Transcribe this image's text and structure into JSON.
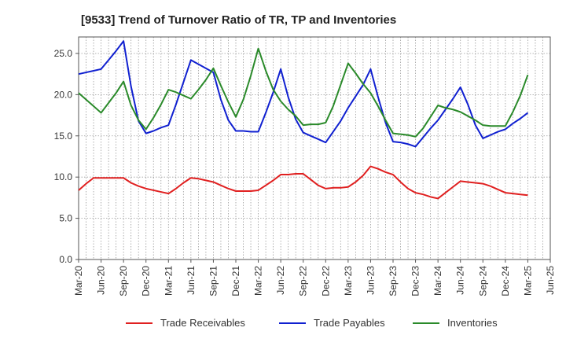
{
  "chart_data": {
    "type": "line",
    "title": "[9533]  Trend of Turnover Ratio of TR, TP and Inventories",
    "xlabel": "",
    "ylabel": "",
    "ylim": [
      0,
      27
    ],
    "yticks": [
      "0.0",
      "5.0",
      "10.0",
      "15.0",
      "20.0",
      "25.0"
    ],
    "ytick_values": [
      0,
      5,
      10,
      15,
      20,
      25
    ],
    "grid": true,
    "legend_position": "bottom",
    "x_tick_labels": [
      "Mar-20",
      "Jun-20",
      "Sep-20",
      "Dec-20",
      "Mar-21",
      "Jun-21",
      "Sep-21",
      "Dec-21",
      "Mar-22",
      "Jun-22",
      "Sep-22",
      "Dec-22",
      "Mar-23",
      "Jun-23",
      "Sep-23",
      "Dec-23",
      "Mar-24",
      "Jun-24",
      "Sep-24",
      "Dec-24",
      "Mar-25",
      "Jun-25"
    ],
    "x": [
      "Mar-20",
      "Apr-20",
      "May-20",
      "Jun-20",
      "Jul-20",
      "Aug-20",
      "Sep-20",
      "Oct-20",
      "Nov-20",
      "Dec-20",
      "Jan-21",
      "Feb-21",
      "Mar-21",
      "Apr-21",
      "May-21",
      "Jun-21",
      "Jul-21",
      "Aug-21",
      "Sep-21",
      "Oct-21",
      "Nov-21",
      "Dec-21",
      "Jan-22",
      "Feb-22",
      "Mar-22",
      "Apr-22",
      "May-22",
      "Jun-22",
      "Jul-22",
      "Aug-22",
      "Sep-22",
      "Oct-22",
      "Nov-22",
      "Dec-22",
      "Jan-23",
      "Feb-23",
      "Mar-23",
      "Apr-23",
      "May-23",
      "Jun-23",
      "Jul-23",
      "Aug-23",
      "Sep-23",
      "Oct-23",
      "Nov-23",
      "Dec-23",
      "Jan-24",
      "Feb-24",
      "Mar-24",
      "Apr-24",
      "May-24",
      "Jun-24",
      "Jul-24",
      "Aug-24",
      "Sep-24",
      "Oct-24",
      "Nov-24",
      "Dec-24",
      "Jan-25",
      "Feb-25",
      "Mar-25",
      "Apr-25",
      "May-25",
      "Jun-25"
    ],
    "series": [
      {
        "name": "Trade Receivables",
        "color": "#e02020",
        "values": [
          8.4,
          9.2,
          9.9,
          9.9,
          9.9,
          9.9,
          9.9,
          9.3,
          8.9,
          8.6,
          8.4,
          8.2,
          8.0,
          8.6,
          9.3,
          9.9,
          9.8,
          9.6,
          9.4,
          9.0,
          8.6,
          8.3,
          8.3,
          8.3,
          8.4,
          9.0,
          9.6,
          10.3,
          10.3,
          10.4,
          10.4,
          9.7,
          9.0,
          8.6,
          8.7,
          8.7,
          8.8,
          9.4,
          10.2,
          11.3,
          11.0,
          10.6,
          10.3,
          9.4,
          8.6,
          8.1,
          7.9,
          7.6,
          7.4,
          8.1,
          8.8,
          9.5,
          9.4,
          9.3,
          9.2,
          8.9,
          8.5,
          8.1,
          8.0,
          7.9,
          7.8,
          null,
          null,
          null
        ]
      },
      {
        "name": "Trade Payables",
        "color": "#1020d0",
        "values": [
          22.5,
          22.7,
          22.9,
          23.1,
          24.2,
          25.3,
          26.5,
          21.0,
          16.8,
          15.3,
          15.6,
          16.0,
          16.3,
          18.8,
          21.5,
          24.2,
          23.7,
          23.2,
          22.7,
          19.4,
          16.9,
          15.6,
          15.6,
          15.5,
          15.5,
          17.8,
          20.3,
          23.1,
          19.7,
          17.0,
          15.4,
          15.0,
          14.6,
          14.2,
          15.5,
          16.8,
          18.4,
          19.8,
          21.2,
          23.1,
          19.7,
          16.6,
          14.3,
          14.2,
          14.0,
          13.7,
          14.8,
          15.9,
          16.9,
          18.2,
          19.5,
          20.9,
          18.8,
          16.3,
          14.7,
          15.1,
          15.5,
          15.8,
          16.5,
          17.1,
          17.8,
          null,
          null,
          null
        ]
      },
      {
        "name": "Inventories",
        "color": "#2a8a2a",
        "values": [
          20.2,
          19.4,
          18.6,
          17.8,
          19.0,
          20.2,
          21.6,
          18.7,
          16.9,
          15.8,
          17.2,
          18.8,
          20.6,
          20.3,
          19.9,
          19.5,
          20.6,
          21.8,
          23.2,
          21.1,
          19.1,
          17.3,
          19.4,
          22.3,
          25.6,
          22.9,
          20.6,
          19.2,
          18.2,
          17.4,
          16.3,
          16.4,
          16.4,
          16.6,
          18.6,
          21.2,
          23.8,
          22.6,
          21.3,
          20.2,
          18.6,
          16.9,
          15.3,
          15.2,
          15.1,
          14.9,
          15.9,
          17.3,
          18.7,
          18.4,
          18.2,
          17.9,
          17.4,
          16.9,
          16.3,
          16.2,
          16.2,
          16.2,
          17.9,
          19.9,
          22.4,
          null,
          null,
          null
        ]
      }
    ]
  }
}
